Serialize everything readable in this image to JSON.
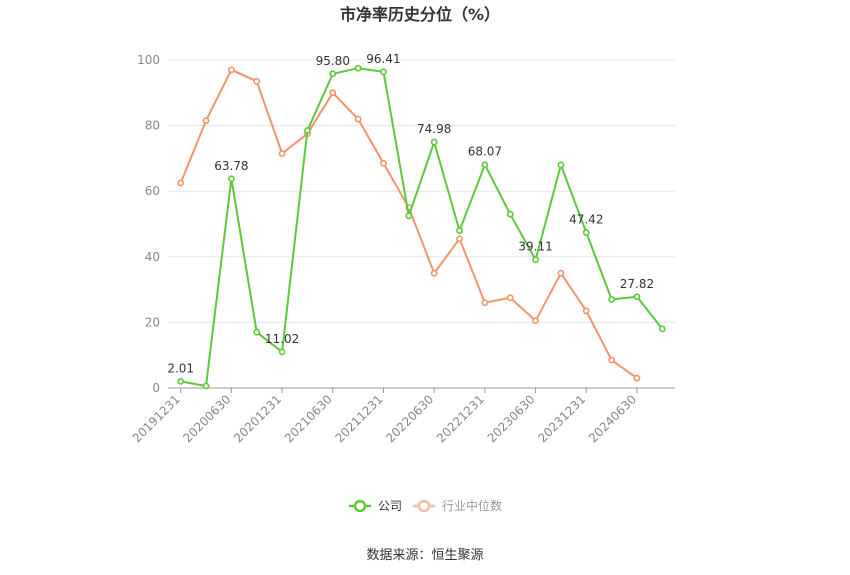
{
  "chart_data": {
    "type": "line",
    "title": "市净率历史分位（%）",
    "x": [
      "20191231",
      "20200331",
      "20200630",
      "20200930",
      "20201231",
      "20210331",
      "20210630",
      "20210930",
      "20211231",
      "20220331",
      "20220630",
      "20220930",
      "20221231",
      "20230331",
      "20230630",
      "20230930",
      "20231231",
      "20240331",
      "20240630",
      "20240930"
    ],
    "x_tick_labels": [
      "20191231",
      "20200630",
      "20201231",
      "20210630",
      "20211231",
      "20220630",
      "20221231",
      "20230630",
      "20231231",
      "20240630"
    ],
    "y_ticks": [
      "0",
      "20",
      "40",
      "60",
      "80",
      "100"
    ],
    "ylim": [
      0,
      100
    ],
    "grid": true,
    "legend_position": "bottom",
    "series": [
      {
        "name": "公司",
        "color": "#5cc93a",
        "values": [
          2.01,
          0.6,
          63.78,
          17.0,
          11.02,
          78.5,
          95.8,
          97.5,
          96.41,
          52.5,
          74.98,
          48.0,
          68.07,
          53.0,
          39.11,
          68.0,
          47.42,
          27.0,
          27.82,
          18.0
        ],
        "labels": [
          "2.01",
          "",
          "63.78",
          "",
          "11.02",
          "",
          "95.80",
          "",
          "96.41",
          "",
          "74.98",
          "",
          "68.07",
          "",
          "39.11",
          "",
          "47.42",
          "",
          "27.82",
          ""
        ]
      },
      {
        "name": "行业中位数",
        "color": "#f0956a",
        "values": [
          62.5,
          81.5,
          97.0,
          93.5,
          71.5,
          77.5,
          90.0,
          82.0,
          68.5,
          55.0,
          35.0,
          45.5,
          26.0,
          27.5,
          20.5,
          35.0,
          23.5,
          8.5,
          3.0,
          null
        ]
      }
    ]
  },
  "footer": {
    "source": "数据来源：恒生聚源"
  }
}
